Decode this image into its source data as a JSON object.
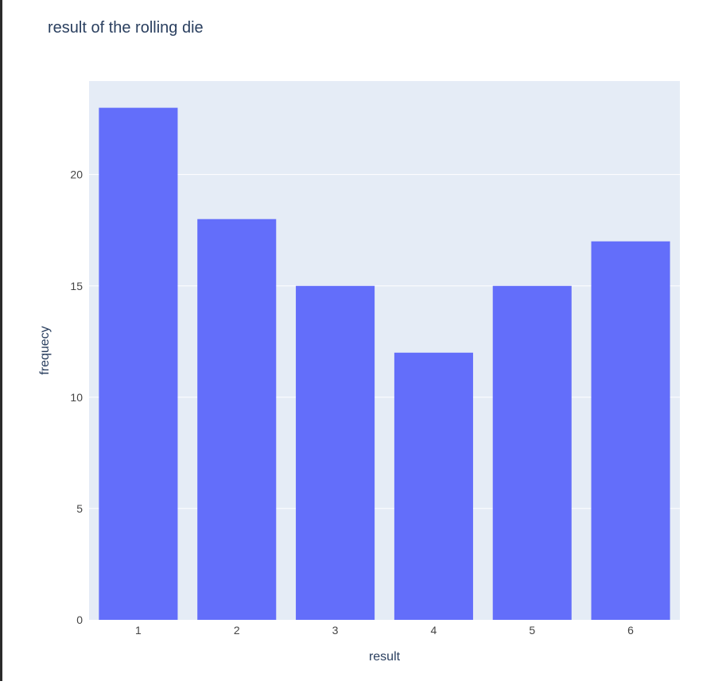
{
  "chart_data": {
    "type": "bar",
    "title": "result of the rolling die",
    "xlabel": "result",
    "ylabel": "frequecy",
    "categories": [
      "1",
      "2",
      "3",
      "4",
      "5",
      "6"
    ],
    "values": [
      23,
      18,
      15,
      12,
      15,
      17
    ],
    "ylim": [
      0,
      24.2
    ],
    "yticks": [
      0,
      5,
      10,
      15,
      20
    ],
    "grid": true,
    "colors": {
      "bar": "#636efa",
      "plot_bg": "#e5ecf6",
      "grid": "#ffffff",
      "text": "#2a3f5f",
      "tick_text": "#444444"
    }
  }
}
